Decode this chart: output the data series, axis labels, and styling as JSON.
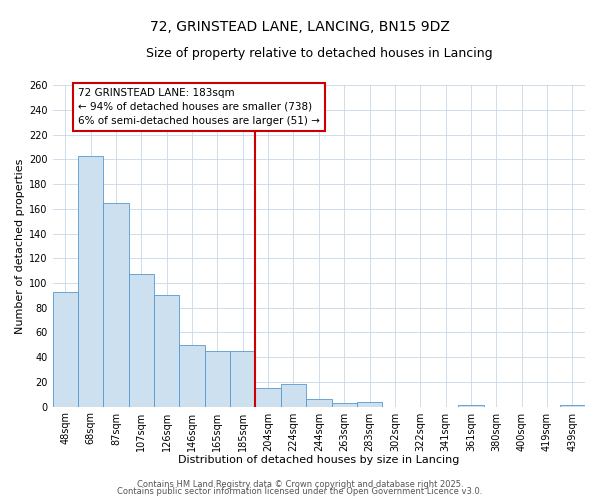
{
  "title": "72, GRINSTEAD LANE, LANCING, BN15 9DZ",
  "subtitle": "Size of property relative to detached houses in Lancing",
  "xlabel": "Distribution of detached houses by size in Lancing",
  "ylabel": "Number of detached properties",
  "bar_labels": [
    "48sqm",
    "68sqm",
    "87sqm",
    "107sqm",
    "126sqm",
    "146sqm",
    "165sqm",
    "185sqm",
    "204sqm",
    "224sqm",
    "244sqm",
    "263sqm",
    "283sqm",
    "302sqm",
    "322sqm",
    "341sqm",
    "361sqm",
    "380sqm",
    "400sqm",
    "419sqm",
    "439sqm"
  ],
  "bar_values": [
    93,
    203,
    165,
    107,
    90,
    50,
    45,
    45,
    15,
    18,
    6,
    3,
    4,
    0,
    0,
    0,
    1,
    0,
    0,
    0,
    1
  ],
  "bar_color": "#cce0f0",
  "bar_edge_color": "#5599cc",
  "vline_x_index": 7,
  "vline_color": "#cc0000",
  "ylim": [
    0,
    260
  ],
  "yticks": [
    0,
    20,
    40,
    60,
    80,
    100,
    120,
    140,
    160,
    180,
    200,
    220,
    240,
    260
  ],
  "annotation_title": "72 GRINSTEAD LANE: 183sqm",
  "annotation_line1": "← 94% of detached houses are smaller (738)",
  "annotation_line2": "6% of semi-detached houses are larger (51) →",
  "annotation_box_color": "#ffffff",
  "annotation_box_edge": "#cc0000",
  "footer_line1": "Contains HM Land Registry data © Crown copyright and database right 2025.",
  "footer_line2": "Contains public sector information licensed under the Open Government Licence v3.0.",
  "bg_color": "#ffffff",
  "grid_color": "#c8d8e8",
  "title_fontsize": 10,
  "subtitle_fontsize": 9,
  "axis_label_fontsize": 8,
  "tick_fontsize": 7,
  "footer_fontsize": 6,
  "annotation_fontsize": 7.5
}
